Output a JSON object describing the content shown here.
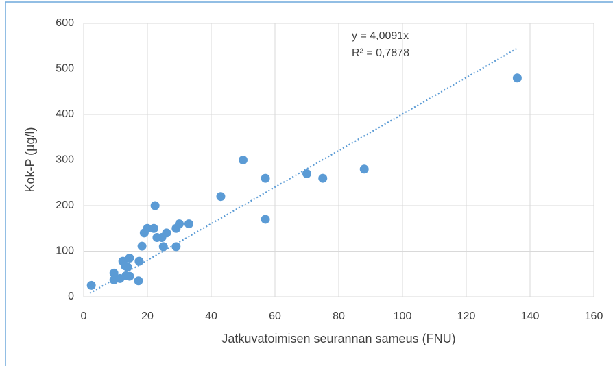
{
  "chart_data": {
    "type": "scatter",
    "xlabel": "Jatkuvatoimisen seurannan sameus (FNU)",
    "ylabel": "Kok-P (µg/l)",
    "annotations": [
      "y = 4,0091x",
      "R² = 0,7878"
    ],
    "x": [
      2.4,
      9.5,
      9.5,
      11.4,
      12.3,
      13.3,
      13.8,
      13,
      14.4,
      14.4,
      17.2,
      17.4,
      18.3,
      19,
      20,
      22.4,
      22,
      23,
      24.5,
      25,
      26,
      29,
      29,
      30,
      33,
      43,
      50,
      57,
      57,
      70,
      75,
      88,
      136
    ],
    "values": [
      25,
      52,
      37,
      40,
      78,
      46,
      65,
      68,
      85,
      45,
      35,
      78,
      111,
      140,
      150,
      200,
      150,
      130,
      130,
      110,
      140,
      150,
      110,
      160,
      160,
      220,
      300,
      260,
      170,
      270,
      260,
      280,
      480
    ],
    "color": "#5b9bd5",
    "trendline": {
      "slope": 4.0091,
      "x": [
        2,
        136
      ]
    },
    "xlim": [
      0,
      160
    ],
    "xticks": [
      0,
      20,
      40,
      60,
      80,
      100,
      120,
      140,
      160
    ],
    "ylim": [
      0,
      600
    ],
    "yticks": [
      0,
      100,
      200,
      300,
      400,
      500,
      600
    ],
    "grid": true
  }
}
